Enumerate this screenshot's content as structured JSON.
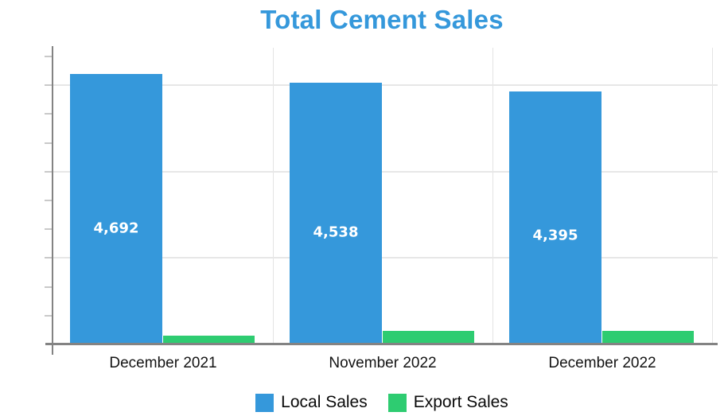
{
  "title": {
    "text": "Total Cement Sales",
    "color": "#3598db"
  },
  "chart_data": {
    "type": "bar",
    "title": "Total Cement Sales",
    "categories": [
      "December 2021",
      "November 2022",
      "December 2022"
    ],
    "series": [
      {
        "name": "Local Sales",
        "color": "#3598db",
        "values": [
          4692,
          4538,
          4395
        ],
        "data_labels": [
          "4,692",
          "4,538",
          "4,395"
        ],
        "data_labels_visible": true
      },
      {
        "name": "Export Sales",
        "color": "#2ecc71",
        "values": [
          150,
          235,
          240
        ],
        "data_labels": [
          "",
          "",
          ""
        ],
        "data_labels_visible": false
      }
    ],
    "xlabel": "",
    "ylabel": "",
    "ylim": [
      0,
      5150
    ],
    "y_tick_step": 500,
    "y_major_gridline_step": 1500,
    "y_tick_labels_visible": false,
    "grid": true,
    "legend_position": "bottom",
    "data_label_color": "#ffffff",
    "axis_color": "#838383",
    "gridline_color": "#e7e7e7",
    "category_label_color": "#141414"
  },
  "legend": {
    "items": [
      {
        "label": "Local Sales",
        "color": "#3598db"
      },
      {
        "label": "Export Sales",
        "color": "#2ecc71"
      }
    ]
  }
}
